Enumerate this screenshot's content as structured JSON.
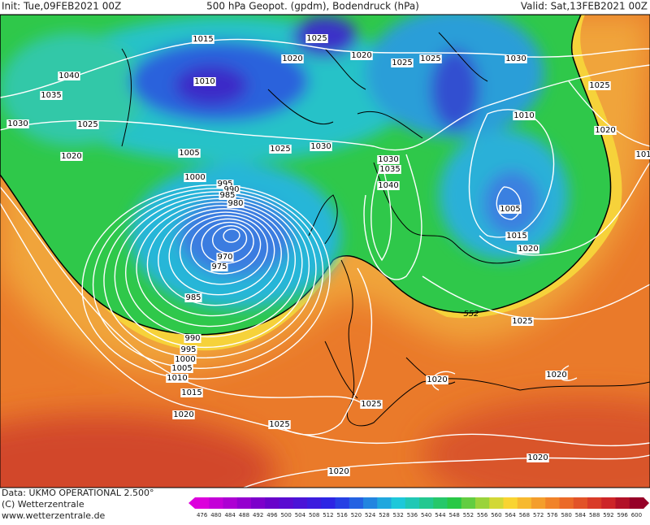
{
  "header": {
    "init": "Init: Tue,09FEB2021 00Z",
    "title": "500 hPa Geopot. (gpdm), Bodendruck (hPa)",
    "valid": "Valid: Sat,13FEB2021 00Z"
  },
  "isobar_labels": [
    "1015",
    "1025",
    "1020",
    "1020",
    "1025",
    "1025",
    "1030",
    "1040",
    "1010",
    "1025",
    "1035",
    "1030",
    "1025",
    "1010",
    "1020",
    "1025",
    "1030",
    "1020",
    "1005",
    "1030",
    "1035",
    "1000",
    "995",
    "990",
    "985",
    "980",
    "1040",
    "1005",
    "1015",
    "1020",
    "970",
    "975",
    "985",
    "1025",
    "990",
    "995",
    "1000",
    "1005",
    "1010",
    "1015",
    "1020",
    "1020",
    "1025",
    "1020",
    "1025",
    "1020",
    "1020",
    "101"
  ],
  "contour_label": "552",
  "footer": {
    "data": "Data: UKMO OPERATIONAL 2.500°",
    "copyright": "(C) Wetterzentrale",
    "url": "www.wetterzentrale.de"
  },
  "colorbar": {
    "ticks": [
      476,
      480,
      484,
      488,
      492,
      496,
      500,
      504,
      508,
      512,
      516,
      520,
      524,
      528,
      532,
      536,
      540,
      544,
      548,
      552,
      556,
      560,
      564,
      568,
      572,
      576,
      580,
      584,
      588,
      592,
      596,
      600
    ]
  }
}
